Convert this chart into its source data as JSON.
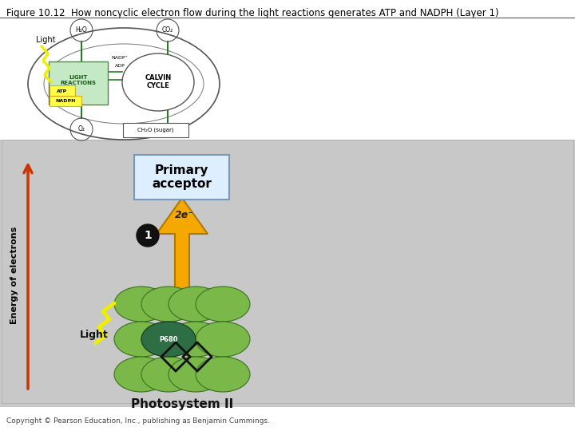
{
  "title": "Figure 10.12  How noncyclic electron flow during the light reactions generates ATP and NADPH (Layer 1)",
  "copyright": "Copyright © Pearson Education, Inc., publishing as Benjamin Cummings.",
  "bg_gray": "#c8c8c8",
  "bg_white": "#ffffff",
  "primary_acceptor_text": "Primary\nacceptor",
  "pa_box_fc": "#ddeeff",
  "pa_box_ec": "#7799bb",
  "photosystem_label": "Photosystem II",
  "p680_label": "P680",
  "p680_bg": "#2d6e45",
  "p680_text": "#ffffff",
  "chlorophyll_color": "#7ab84a",
  "chlorophyll_edge": "#3a7020",
  "arrow_up_color": "#f5a800",
  "arrow_up_edge": "#b07800",
  "energy_arrow_color": "#cc3300",
  "two_e_label": "2e⁻",
  "step1_label": "1",
  "light_zigzag_color": "#eeee00",
  "light_zigzag_edge": "#aa9900"
}
